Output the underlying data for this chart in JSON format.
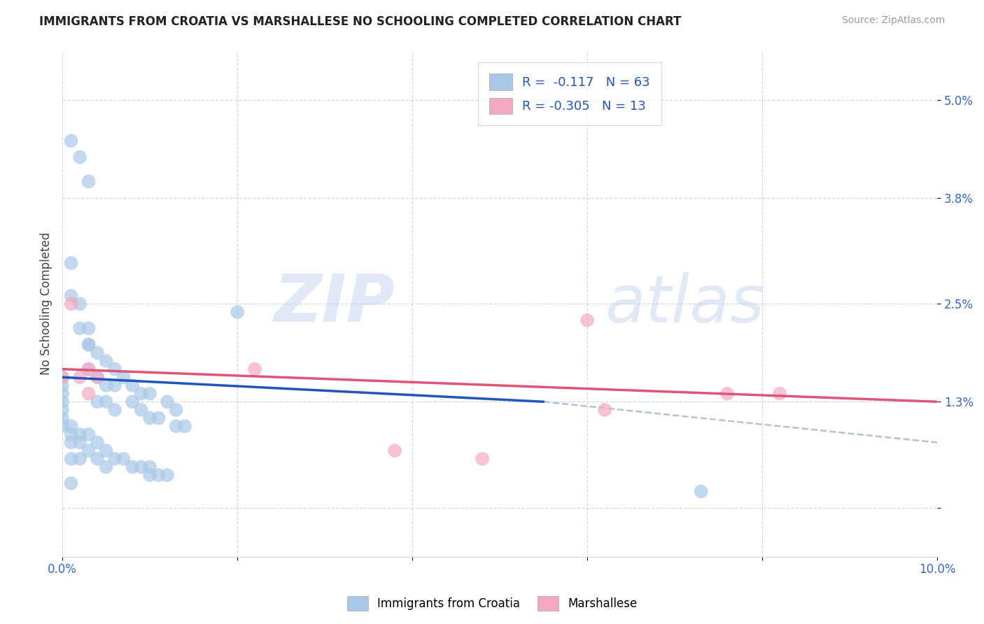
{
  "title": "IMMIGRANTS FROM CROATIA VS MARSHALLESE NO SCHOOLING COMPLETED CORRELATION CHART",
  "source": "Source: ZipAtlas.com",
  "ylabel": "No Schooling Completed",
  "r_croatia": -0.117,
  "n_croatia": 63,
  "r_marshallese": -0.305,
  "n_marshallese": 13,
  "xlim": [
    0.0,
    0.1
  ],
  "ylim": [
    -0.006,
    0.056
  ],
  "ytick_vals": [
    0.0,
    0.013,
    0.025,
    0.038,
    0.05
  ],
  "ytick_labels": [
    "",
    "1.3%",
    "2.5%",
    "3.8%",
    "5.0%"
  ],
  "xtick_vals": [
    0.0,
    0.02,
    0.04,
    0.06,
    0.08,
    0.1
  ],
  "xtick_labels": [
    "0.0%",
    "",
    "",
    "",
    "",
    "10.0%"
  ],
  "color_croatia": "#a8c8e8",
  "color_marshallese": "#f4a8c0",
  "line_color_croatia": "#2255bb",
  "line_color_marshallese": "#dd5577",
  "dash_color": "#b0c4d8",
  "grid_color": "#d0d8e8",
  "croatia_x": [
    0.0,
    0.0,
    0.0,
    0.0,
    0.0,
    0.0,
    0.0,
    0.003,
    0.003,
    0.004,
    0.004,
    0.005,
    0.005,
    0.006,
    0.006,
    0.008,
    0.009,
    0.01,
    0.01,
    0.011,
    0.012,
    0.013,
    0.013,
    0.014,
    0.001,
    0.001,
    0.001,
    0.001,
    0.002,
    0.002,
    0.002,
    0.003,
    0.003,
    0.004,
    0.004,
    0.005,
    0.005,
    0.006,
    0.007,
    0.008,
    0.009,
    0.01,
    0.01,
    0.011,
    0.012,
    0.001,
    0.001,
    0.002,
    0.002,
    0.003,
    0.003,
    0.004,
    0.005,
    0.006,
    0.007,
    0.008,
    0.009,
    0.001,
    0.002,
    0.003,
    0.02,
    0.073,
    0.001
  ],
  "croatia_y": [
    0.016,
    0.015,
    0.014,
    0.013,
    0.012,
    0.011,
    0.01,
    0.02,
    0.017,
    0.016,
    0.013,
    0.015,
    0.013,
    0.015,
    0.012,
    0.013,
    0.012,
    0.014,
    0.011,
    0.011,
    0.013,
    0.012,
    0.01,
    0.01,
    0.01,
    0.009,
    0.008,
    0.006,
    0.009,
    0.008,
    0.006,
    0.009,
    0.007,
    0.008,
    0.006,
    0.007,
    0.005,
    0.006,
    0.006,
    0.005,
    0.005,
    0.005,
    0.004,
    0.004,
    0.004,
    0.03,
    0.026,
    0.025,
    0.022,
    0.022,
    0.02,
    0.019,
    0.018,
    0.017,
    0.016,
    0.015,
    0.014,
    0.045,
    0.043,
    0.04,
    0.024,
    0.002,
    0.003
  ],
  "marsh_x": [
    0.0,
    0.001,
    0.002,
    0.003,
    0.003,
    0.004,
    0.022,
    0.038,
    0.048,
    0.06,
    0.062,
    0.076,
    0.082
  ],
  "marsh_y": [
    0.016,
    0.025,
    0.016,
    0.017,
    0.014,
    0.016,
    0.017,
    0.007,
    0.006,
    0.023,
    0.012,
    0.014,
    0.014
  ],
  "blue_line_x": [
    0.0,
    0.055
  ],
  "blue_line_y": [
    0.016,
    0.013
  ],
  "dash_line_x": [
    0.055,
    0.1
  ],
  "dash_line_y": [
    0.013,
    0.008
  ],
  "pink_line_x": [
    0.0,
    0.1
  ],
  "pink_line_y": [
    0.017,
    0.013
  ]
}
